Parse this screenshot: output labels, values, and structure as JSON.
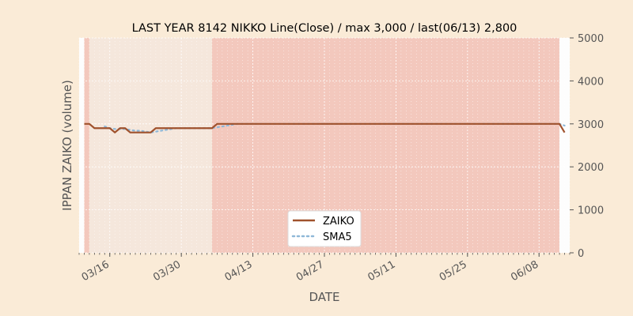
{
  "chart_data": {
    "type": "line",
    "title": "LAST YEAR 8142 NIKKO Line(Close) / max 3,000 / last(06/13) 2,800",
    "xlabel": "DATE",
    "ylabel": "IPPAN ZAIKO (volume)",
    "ylim": [
      0,
      5000
    ],
    "y_ticks": [
      "0",
      "1000",
      "2000",
      "3000",
      "4000",
      "5000"
    ],
    "y_axis_side": "right",
    "x_range": [
      "03/10",
      "06/14"
    ],
    "x_tick_labels": [
      {
        "date": "03/16",
        "label": "03/16"
      },
      {
        "date": "03/30",
        "label": "03/30"
      },
      {
        "date": "04/13",
        "label": "04/13"
      },
      {
        "date": "04/27",
        "label": "04/27"
      },
      {
        "date": "05/11",
        "label": "05/11"
      },
      {
        "date": "05/25",
        "label": "05/25"
      },
      {
        "date": "06/08",
        "label": "06/08"
      }
    ],
    "grid": true,
    "legend_position": "lower-center",
    "background_bands": [
      {
        "start": "03/10",
        "end": "03/11",
        "color": "#fdfdfd"
      },
      {
        "start": "03/11",
        "end": "03/12",
        "color": "#f3c8bd"
      },
      {
        "start": "03/12",
        "end": "04/05",
        "color": "#f5e7dc"
      },
      {
        "start": "04/05",
        "end": "06/12",
        "color": "#f3c8bd"
      },
      {
        "start": "06/12",
        "end": "06/14",
        "color": "#fdfdfd"
      }
    ],
    "series": [
      {
        "name": "ZAIKO",
        "color": "#a0522d",
        "style": "solid",
        "points": [
          [
            "03/11",
            3000
          ],
          [
            "03/12",
            3000
          ],
          [
            "03/13",
            2900
          ],
          [
            "03/14",
            2900
          ],
          [
            "03/15",
            2900
          ],
          [
            "03/16",
            2900
          ],
          [
            "03/17",
            2800
          ],
          [
            "03/18",
            2900
          ],
          [
            "03/19",
            2900
          ],
          [
            "03/20",
            2800
          ],
          [
            "03/21",
            2800
          ],
          [
            "03/22",
            2800
          ],
          [
            "03/23",
            2800
          ],
          [
            "03/24",
            2800
          ],
          [
            "03/25",
            2900
          ],
          [
            "03/26",
            2900
          ],
          [
            "03/27",
            2900
          ],
          [
            "03/28",
            2900
          ],
          [
            "03/29",
            2900
          ],
          [
            "03/30",
            2900
          ],
          [
            "03/31",
            2900
          ],
          [
            "04/01",
            2900
          ],
          [
            "04/02",
            2900
          ],
          [
            "04/03",
            2900
          ],
          [
            "04/04",
            2900
          ],
          [
            "04/05",
            2900
          ],
          [
            "04/06",
            3000
          ],
          [
            "04/07",
            3000
          ],
          [
            "06/12",
            3000
          ],
          [
            "06/13",
            2800
          ]
        ]
      },
      {
        "name": "SMA5",
        "color": "#8fb8d8",
        "style": "dotted",
        "points": [
          [
            "03/15",
            2940
          ],
          [
            "03/16",
            2900
          ],
          [
            "03/17",
            2880
          ],
          [
            "03/18",
            2880
          ],
          [
            "03/19",
            2880
          ],
          [
            "03/20",
            2860
          ],
          [
            "03/21",
            2840
          ],
          [
            "03/22",
            2840
          ],
          [
            "03/23",
            2820
          ],
          [
            "03/24",
            2800
          ],
          [
            "03/25",
            2820
          ],
          [
            "03/26",
            2840
          ],
          [
            "03/27",
            2860
          ],
          [
            "03/28",
            2880
          ],
          [
            "03/29",
            2900
          ],
          [
            "04/05",
            2900
          ],
          [
            "04/06",
            2920
          ],
          [
            "04/07",
            2940
          ],
          [
            "04/08",
            2960
          ],
          [
            "04/09",
            2980
          ],
          [
            "04/10",
            3000
          ],
          [
            "06/12",
            3000
          ],
          [
            "06/13",
            2960
          ]
        ]
      }
    ],
    "colors": {
      "background": "#faebd7",
      "grid_major": "#ffffff"
    }
  }
}
